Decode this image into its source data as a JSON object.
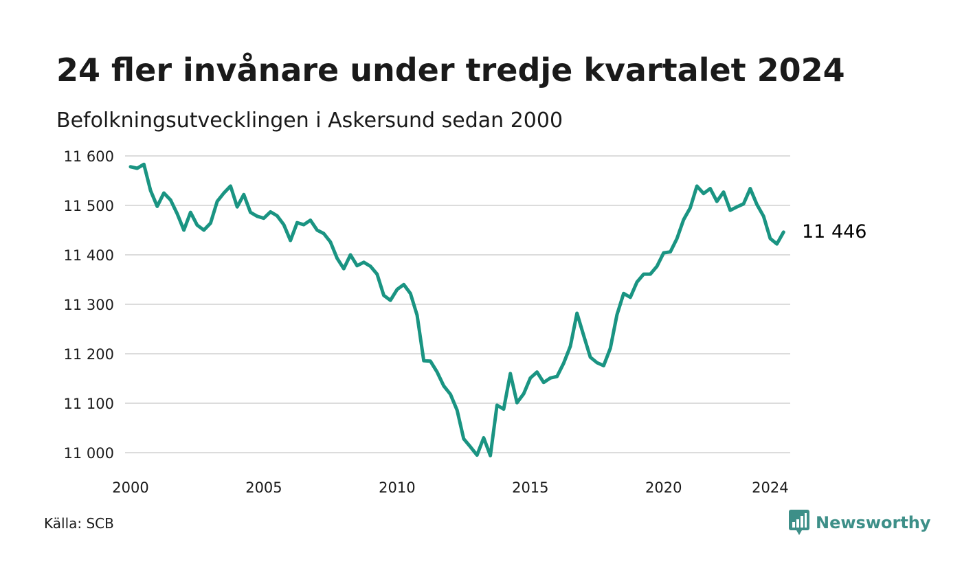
{
  "header": {
    "title": "24 fler invånare under tredje kvartalet 2024",
    "subtitle": "Befolkningsutvecklingen i Askersund sedan 2000"
  },
  "footer": {
    "source": "Källa: SCB",
    "brand": "Newsworthy",
    "brand_icon": "newsworthy-logo-icon"
  },
  "colors": {
    "line": "#1a9482",
    "grid": "#dcdcdc",
    "brand": "#3d8f88"
  },
  "chart_data": {
    "type": "line",
    "title": "24 fler invånare under tredje kvartalet 2024",
    "subtitle": "Befolkningsutvecklingen i Askersund sedan 2000",
    "xlabel": "",
    "ylabel": "",
    "x_range": [
      2000.0,
      2024.75
    ],
    "ylim": [
      11000,
      11600
    ],
    "y_ticks": [
      11000,
      11100,
      11200,
      11300,
      11400,
      11500,
      11600
    ],
    "y_tick_labels": [
      "11 000",
      "11 100",
      "11 200",
      "11 300",
      "11 400",
      "11 500",
      "11 600"
    ],
    "x_ticks": [
      2000,
      2005,
      2010,
      2015,
      2020,
      2024
    ],
    "x_tick_labels": [
      "2000",
      "2005",
      "2010",
      "2015",
      "2020",
      "2024"
    ],
    "grid": true,
    "legend": "none",
    "end_label": "11 446",
    "series": [
      {
        "x": [
          "2000Q1",
          "2000Q2",
          "2000Q3",
          "2000Q4",
          "2001Q1",
          "2001Q2",
          "2001Q3",
          "2001Q4",
          "2002Q1",
          "2002Q2",
          "2002Q3",
          "2002Q4",
          "2003Q1",
          "2003Q2",
          "2003Q3",
          "2003Q4",
          "2004Q1",
          "2004Q2",
          "2004Q3",
          "2004Q4",
          "2005Q1",
          "2005Q2",
          "2005Q3",
          "2005Q4",
          "2006Q1",
          "2006Q2",
          "2006Q3",
          "2006Q4",
          "2007Q1",
          "2007Q2",
          "2007Q3",
          "2007Q4",
          "2008Q1",
          "2008Q2",
          "2008Q3",
          "2008Q4",
          "2009Q1",
          "2009Q2",
          "2009Q3",
          "2009Q4",
          "2010Q1",
          "2010Q2",
          "2010Q3",
          "2010Q4",
          "2011Q1",
          "2011Q2",
          "2011Q3",
          "2011Q4",
          "2012Q1",
          "2012Q2",
          "2012Q3",
          "2012Q4",
          "2013Q1",
          "2013Q2",
          "2013Q3",
          "2013Q4",
          "2014Q1",
          "2014Q2",
          "2014Q3",
          "2014Q4",
          "2015Q1",
          "2015Q2",
          "2015Q3",
          "2015Q4",
          "2016Q1",
          "2016Q2",
          "2016Q3",
          "2016Q4",
          "2017Q1",
          "2017Q2",
          "2017Q3",
          "2017Q4",
          "2018Q1",
          "2018Q2",
          "2018Q3",
          "2018Q4",
          "2019Q1",
          "2019Q2",
          "2019Q3",
          "2019Q4",
          "2020Q1",
          "2020Q2",
          "2020Q3",
          "2020Q4",
          "2021Q1",
          "2021Q2",
          "2021Q3",
          "2021Q4",
          "2022Q1",
          "2022Q2",
          "2022Q3",
          "2022Q4",
          "2023Q1",
          "2023Q2",
          "2023Q3",
          "2023Q4",
          "2024Q1",
          "2024Q2",
          "2024Q3"
        ],
        "values": [
          11578,
          11575,
          11583,
          11530,
          11498,
          11525,
          11511,
          11483,
          11450,
          11486,
          11460,
          11450,
          11464,
          11508,
          11525,
          11539,
          11497,
          11522,
          11486,
          11478,
          11474,
          11487,
          11479,
          11461,
          11429,
          11465,
          11461,
          11470,
          11450,
          11443,
          11426,
          11393,
          11372,
          11400,
          11378,
          11385,
          11377,
          11361,
          11318,
          11308,
          11330,
          11340,
          11322,
          11278,
          11186,
          11185,
          11163,
          11135,
          11118,
          11086,
          11028,
          11012,
          10995,
          11030,
          10994,
          11096,
          11088,
          11160,
          11101,
          11119,
          11151,
          11163,
          11142,
          11151,
          11154,
          11181,
          11215,
          11282,
          11237,
          11193,
          11182,
          11176,
          11211,
          11279,
          11322,
          11314,
          11345,
          11361,
          11361,
          11377,
          11404,
          11406,
          11433,
          11471,
          11495,
          11539,
          11524,
          11534,
          11508,
          11527,
          11490,
          11497,
          11503,
          11534,
          11502,
          11478,
          11433,
          11422,
          11446
        ]
      }
    ]
  }
}
